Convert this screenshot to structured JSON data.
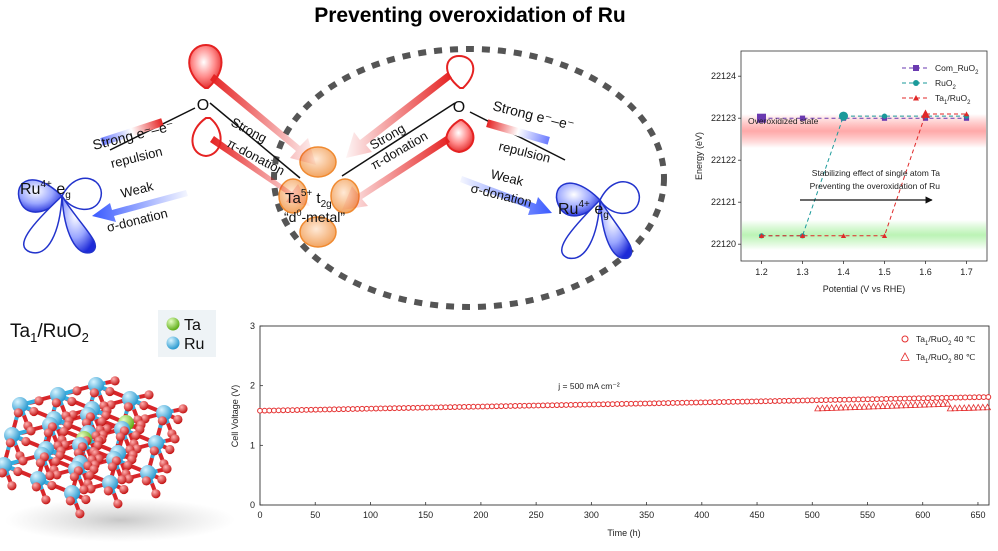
{
  "title": "Preventing overoxidation of Ru",
  "scheme": {
    "o_left": "O",
    "o_right": "O",
    "ru_left_main": "Ru",
    "ru_left_sup": "4+",
    "ru_left_orb": "e",
    "ru_left_orb_sub": "g",
    "ru_right_main": "Ru",
    "ru_right_sup": "4+",
    "ru_right_orb": "e",
    "ru_right_orb_sub": "g",
    "ta_main": "Ta",
    "ta_sup": "5+",
    "ta_orb": "t",
    "ta_orb_sub": "2g",
    "d0_open": "“d",
    "d0_sup": "0",
    "d0_close": "-metal”",
    "strong_repulsion_left": "Strong e⁻–e⁻",
    "repulsion_left": "repulsion",
    "strong_pi_left": "Strong",
    "pi_donation_left": "π-donation",
    "weak_left": "Weak",
    "sigma_left": "σ-donation",
    "strong_repulsion_right": "Strong e⁻–e⁻",
    "repulsion_right": "repulsion",
    "strong_pi_right": "Strong",
    "pi_donation_right": "π-donation",
    "weak_right": "Weak",
    "sigma_right": "σ-donation"
  },
  "structure": {
    "label_main": "Ta",
    "label_sub": "1",
    "label_rest": "/RuO",
    "label_sub2": "2",
    "legend": [
      {
        "name": "Ta",
        "color": "#8bcf3a"
      },
      {
        "name": "Ru",
        "color": "#3fb7e0"
      }
    ]
  },
  "colors": {
    "oxygen": "#e52222",
    "ta": "#f0a060",
    "ru": "#3344dd",
    "cell_red": "#e53030",
    "energy_purple": "#6a3ab0",
    "energy_teal": "#1a9a9a",
    "energy_red": "#e02828"
  },
  "chart_data": [
    {
      "type": "line",
      "title": "",
      "xlabel": "Potential (V vs RHE)",
      "ylabel": "Energy (eV)",
      "xlim": [
        1.15,
        1.75
      ],
      "ylim": [
        22119.6,
        22124.6
      ],
      "x_ticks": [
        "1.2",
        "1.3",
        "1.4",
        "1.5",
        "1.6",
        "1.7"
      ],
      "y_ticks": [
        "22120",
        "22121",
        "22122",
        "22123",
        "22124"
      ],
      "x": [
        1.2,
        1.3,
        1.4,
        1.5,
        1.6,
        1.7
      ],
      "series": [
        {
          "name": "Com_RuO",
          "name_sub": "2",
          "marker": "square",
          "color": "#6a3ab0",
          "values": [
            22123.0,
            22123.0,
            22123.0,
            22123.0,
            22123.0,
            22123.0
          ]
        },
        {
          "name": "RuO",
          "name_sub": "2",
          "marker": "circle",
          "color": "#1a9a9a",
          "values": [
            22120.2,
            22120.2,
            22123.05,
            22123.05,
            22123.05,
            22123.05
          ]
        },
        {
          "name": "Ta",
          "name_sub": "1",
          "name_rest": "/RuO",
          "name_sub2": "2",
          "marker": "triangle",
          "color": "#e02828",
          "values": [
            22120.2,
            22120.2,
            22120.2,
            22120.2,
            22123.1,
            22123.1
          ]
        }
      ],
      "annotations": {
        "overoxidized": "Overoxidized state",
        "stabilizing_line1": "Stabilizing effect of single atom Ta",
        "stabilizing_line2": "Preventing the overoxidation of Ru"
      }
    },
    {
      "type": "scatter",
      "title": "",
      "xlabel": "Time (h)",
      "ylabel": "Cell Voltage (V)",
      "xlim": [
        0,
        660
      ],
      "ylim": [
        0,
        3
      ],
      "x_ticks": [
        "0",
        "50",
        "100",
        "150",
        "200",
        "250",
        "300",
        "350",
        "400",
        "450",
        "500",
        "550",
        "600",
        "650"
      ],
      "y_ticks": [
        "0",
        "1",
        "2",
        "3"
      ],
      "annotation": "j = 500 mA cm⁻²",
      "series": [
        {
          "name": "Ta",
          "name_sub": "1",
          "name_rest": "/RuO",
          "name_sub2": "2",
          "name_tail": " 40 ℃",
          "marker": "circle",
          "color": "#e53030",
          "segments": [
            {
              "x0": 0,
              "x1": 660,
              "y0": 1.58,
              "y1": 1.81
            }
          ]
        },
        {
          "name": "Ta",
          "name_sub": "1",
          "name_rest": "/RuO",
          "name_sub2": "2",
          "name_tail": " 80 ℃",
          "marker": "triangle-open",
          "color": "#e53030",
          "segments": [
            {
              "x0": 505,
              "x1": 625,
              "y0": 1.62,
              "y1": 1.7
            },
            {
              "x0": 625,
              "x1": 660,
              "y0": 1.62,
              "y1": 1.64
            }
          ]
        }
      ]
    }
  ]
}
